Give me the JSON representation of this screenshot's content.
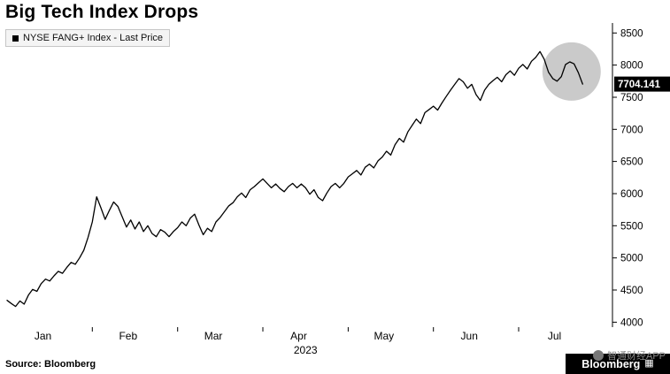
{
  "chart_data": {
    "type": "line",
    "title": "Big Tech Index Drops",
    "legend": "NYSE FANG+ Index - Last Price",
    "x_labels": [
      "Jan",
      "Feb",
      "Mar",
      "Apr",
      "May",
      "Jun",
      "Jul"
    ],
    "year_label": "2023",
    "xlim": [
      0,
      7.1
    ],
    "ylim": [
      3950,
      8600
    ],
    "y_ticks": [
      8500,
      8000,
      7500,
      7000,
      6500,
      6000,
      5500,
      5000,
      4500,
      4000
    ],
    "grid": false,
    "legend_position": "top-left",
    "series": [
      {
        "name": "NYSE FANG+ Index - Last Price",
        "color": "#000000",
        "x_start": 0,
        "x_step": 0.05,
        "values": [
          4340,
          4290,
          4245,
          4330,
          4280,
          4420,
          4510,
          4480,
          4600,
          4670,
          4640,
          4720,
          4790,
          4760,
          4850,
          4930,
          4900,
          5000,
          5120,
          5320,
          5560,
          5950,
          5780,
          5600,
          5740,
          5870,
          5800,
          5640,
          5480,
          5590,
          5450,
          5560,
          5410,
          5500,
          5380,
          5330,
          5440,
          5400,
          5330,
          5410,
          5470,
          5560,
          5500,
          5620,
          5680,
          5510,
          5360,
          5460,
          5410,
          5560,
          5630,
          5720,
          5810,
          5860,
          5950,
          6010,
          5940,
          6060,
          6110,
          6170,
          6230,
          6160,
          6090,
          6150,
          6080,
          6030,
          6110,
          6160,
          6090,
          6150,
          6090,
          5990,
          6060,
          5940,
          5890,
          6010,
          6110,
          6160,
          6090,
          6160,
          6260,
          6310,
          6360,
          6290,
          6410,
          6460,
          6400,
          6510,
          6570,
          6660,
          6600,
          6760,
          6860,
          6800,
          6960,
          7060,
          7160,
          7090,
          7260,
          7310,
          7360,
          7300,
          7410,
          7510,
          7610,
          7700,
          7790,
          7740,
          7640,
          7700,
          7540,
          7450,
          7610,
          7700,
          7760,
          7810,
          7740,
          7850,
          7910,
          7840,
          7950,
          8010,
          7940,
          8060,
          8120,
          8210,
          8090,
          7890,
          7790,
          7750,
          7820,
          8010,
          8050,
          8020,
          7880,
          7704.141
        ]
      }
    ],
    "last_price": {
      "text": "7704.141",
      "value": 7704.141,
      "bg": "#000000",
      "fg": "#ffffff"
    },
    "highlight": {
      "x": 6.62,
      "value": 7900,
      "radius_px": 33,
      "color": "#9e9e9e",
      "opacity": 0.55
    }
  },
  "footer": {
    "source": "Source: Bloomberg",
    "brand": "Bloomberg",
    "grid_icon": "▦",
    "watermark": "智通财经APP"
  }
}
